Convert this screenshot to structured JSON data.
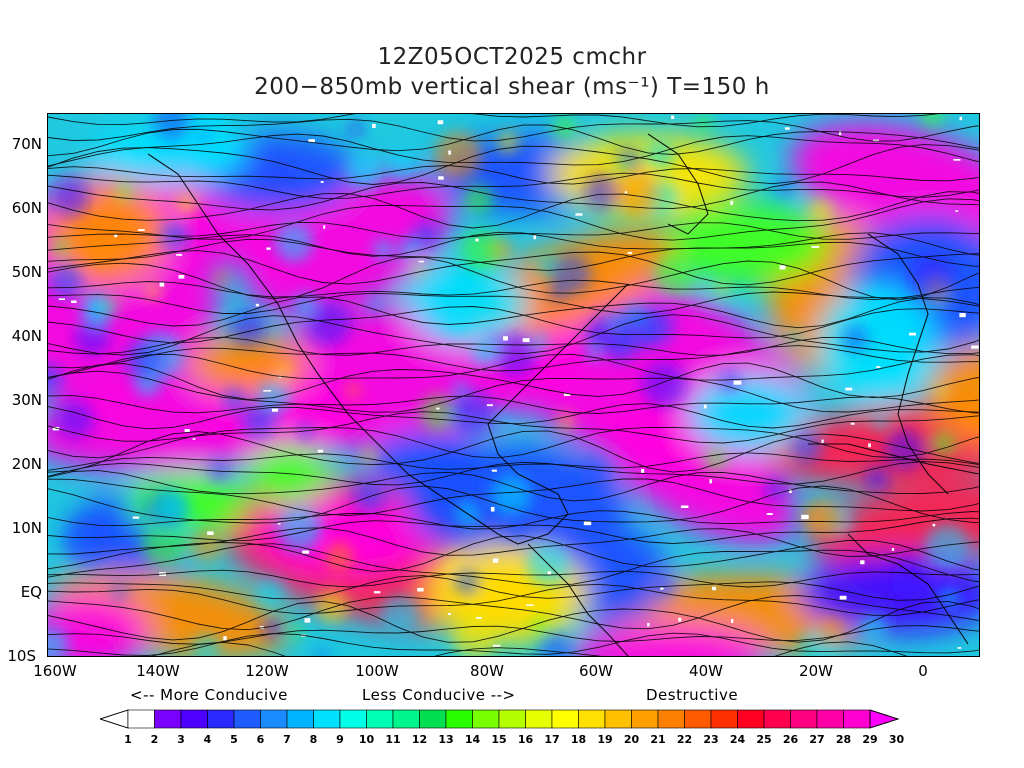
{
  "title_line1": "12Z05OCT2025 cmchr",
  "title_line2": "200−850mb vertical shear (ms⁻¹) T=150 h",
  "y_axis_labels": [
    "70N",
    "60N",
    "50N",
    "40N",
    "30N",
    "20N",
    "10N",
    "EQ",
    "10S"
  ],
  "x_axis_labels": [
    "160W",
    "140W",
    "120W",
    "100W",
    "80W",
    "60W",
    "40W",
    "20W",
    "0"
  ],
  "notes": {
    "more_conducive": "<-- More Conducive",
    "less_conducive": "Less Conducive -->",
    "destructive": "Destructive"
  },
  "colorbar": {
    "labels": [
      "1",
      "2",
      "3",
      "4",
      "5",
      "6",
      "7",
      "8",
      "9",
      "10",
      "11",
      "12",
      "13",
      "14",
      "15",
      "16",
      "17",
      "18",
      "19",
      "20",
      "21",
      "22",
      "23",
      "24",
      "25",
      "26",
      "27",
      "28",
      "29",
      "30"
    ],
    "colors": [
      "#ffffff",
      "#7a00ff",
      "#4d00ff",
      "#2a2aff",
      "#1f5cff",
      "#1a8cff",
      "#00b4ff",
      "#00e0ff",
      "#00ffe6",
      "#00ffb4",
      "#00f58c",
      "#00e050",
      "#2aff00",
      "#78ff00",
      "#b4ff00",
      "#e6ff00",
      "#ffff00",
      "#ffe000",
      "#ffc000",
      "#ffa000",
      "#ff8000",
      "#ff5a00",
      "#ff3000",
      "#ff0020",
      "#ff0050",
      "#ff0080",
      "#ff00a8",
      "#ff00d0",
      "#ff00ff"
    ]
  },
  "map": {
    "projection": "lat-lon",
    "lon_range": [
      "160W",
      "10E"
    ],
    "lat_range": [
      "10S",
      "75N"
    ],
    "field": "shear magnitude with streamlines"
  }
}
